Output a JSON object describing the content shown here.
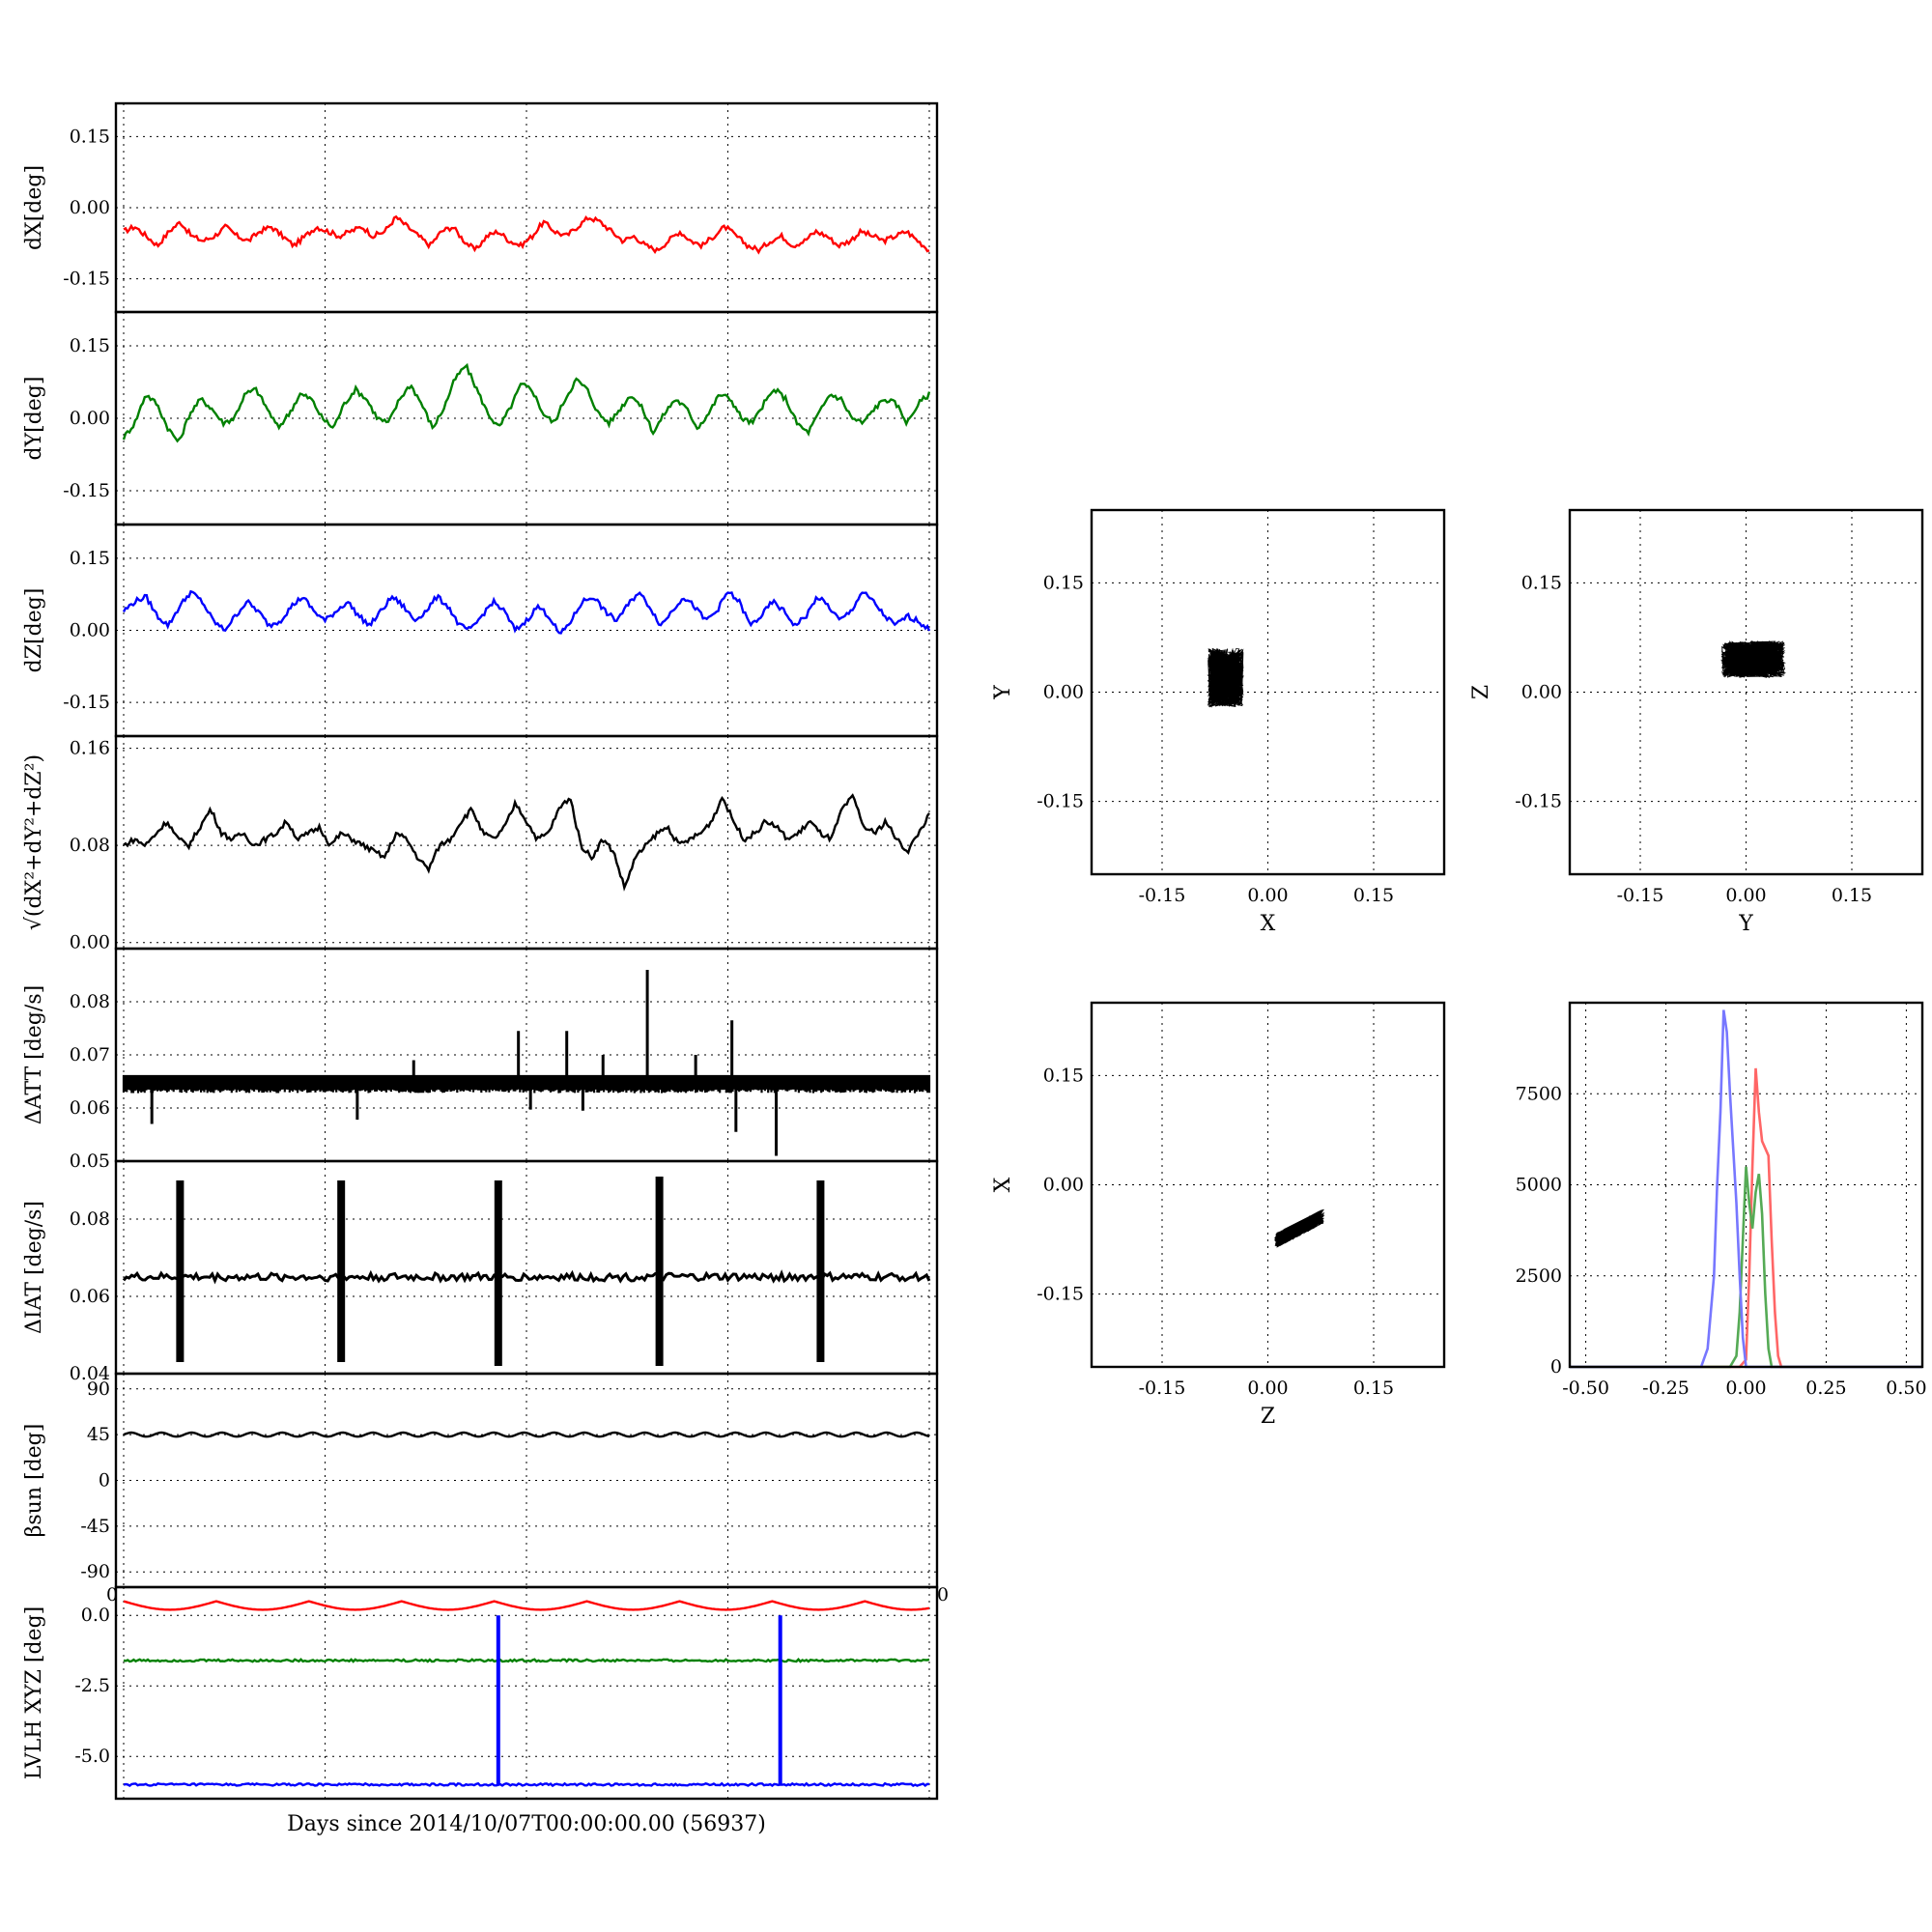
{
  "figure": {
    "xlabel": "Days since 2014/10/07T00:00:00.00 (56937)"
  },
  "chart_data": [
    {
      "type": "line",
      "ylabel": "dX[deg]",
      "ylim": [
        -0.22,
        0.22
      ],
      "yticks": [
        "0.15",
        "0.00",
        "-0.15"
      ],
      "ytick_values": [
        0.15,
        0.0,
        -0.15
      ],
      "xlim": [
        0,
        20
      ],
      "color": "#ff0000",
      "grid": true,
      "series": [
        {
          "values": [
            -0.05,
            -0.04,
            -0.06,
            -0.08,
            -0.05,
            -0.03,
            -0.06,
            -0.07,
            -0.06,
            -0.04,
            -0.06,
            -0.07,
            -0.05,
            -0.04,
            -0.06,
            -0.08,
            -0.06,
            -0.04,
            -0.05,
            -0.06,
            -0.05,
            -0.04,
            -0.06,
            -0.05,
            -0.02,
            -0.04,
            -0.06,
            -0.08,
            -0.05,
            -0.04,
            -0.07,
            -0.09,
            -0.06,
            -0.05,
            -0.07,
            -0.08,
            -0.06,
            -0.03,
            -0.05,
            -0.06,
            -0.04,
            -0.02,
            -0.03,
            -0.05,
            -0.07,
            -0.06,
            -0.08,
            -0.09,
            -0.07,
            -0.05,
            -0.07,
            -0.08,
            -0.06,
            -0.04,
            -0.06,
            -0.08,
            -0.09,
            -0.07,
            -0.06,
            -0.08,
            -0.07,
            -0.05,
            -0.06,
            -0.08,
            -0.07,
            -0.05,
            -0.06,
            -0.07,
            -0.06,
            -0.05,
            -0.07,
            -0.09
          ]
        }
      ]
    },
    {
      "type": "line",
      "ylabel": "dY[deg]",
      "ylim": [
        -0.22,
        0.22
      ],
      "yticks": [
        "0.15",
        "0.00",
        "-0.15"
      ],
      "ytick_values": [
        0.15,
        0.0,
        -0.15
      ],
      "xlim": [
        0,
        20
      ],
      "color": "#008000",
      "grid": true,
      "series": [
        {
          "values": [
            -0.04,
            -0.01,
            0.05,
            0.03,
            -0.02,
            -0.05,
            0.01,
            0.04,
            0.02,
            -0.01,
            0.0,
            0.05,
            0.06,
            0.02,
            -0.02,
            0.01,
            0.05,
            0.04,
            0.0,
            -0.02,
            0.03,
            0.06,
            0.04,
            0.0,
            -0.01,
            0.04,
            0.07,
            0.03,
            -0.02,
            0.02,
            0.08,
            0.11,
            0.06,
            0.01,
            -0.02,
            0.02,
            0.07,
            0.06,
            0.01,
            -0.01,
            0.04,
            0.08,
            0.06,
            0.01,
            -0.01,
            0.02,
            0.05,
            0.02,
            -0.03,
            0.01,
            0.04,
            0.02,
            -0.02,
            0.01,
            0.05,
            0.04,
            0.0,
            -0.01,
            0.03,
            0.06,
            0.04,
            -0.01,
            -0.03,
            0.01,
            0.05,
            0.04,
            0.0,
            -0.01,
            0.02,
            0.04,
            0.03,
            -0.01,
            0.03,
            0.05
          ]
        }
      ]
    },
    {
      "type": "line",
      "ylabel": "dZ[deg]",
      "ylim": [
        -0.22,
        0.22
      ],
      "yticks": [
        "0.15",
        "0.00",
        "-0.15"
      ],
      "ytick_values": [
        0.15,
        0.0,
        -0.15
      ],
      "xlim": [
        0,
        20
      ],
      "color": "#0000ff",
      "grid": true,
      "series": [
        {
          "values": [
            0.04,
            0.06,
            0.07,
            0.03,
            0.01,
            0.05,
            0.08,
            0.06,
            0.02,
            0.0,
            0.03,
            0.06,
            0.04,
            0.01,
            0.02,
            0.05,
            0.07,
            0.04,
            0.02,
            0.04,
            0.06,
            0.03,
            0.01,
            0.04,
            0.07,
            0.05,
            0.02,
            0.04,
            0.07,
            0.05,
            0.01,
            0.0,
            0.03,
            0.06,
            0.04,
            0.0,
            0.02,
            0.05,
            0.03,
            -0.01,
            0.02,
            0.06,
            0.07,
            0.04,
            0.02,
            0.05,
            0.08,
            0.05,
            0.01,
            0.04,
            0.07,
            0.05,
            0.02,
            0.04,
            0.08,
            0.06,
            0.01,
            0.03,
            0.06,
            0.04,
            0.01,
            0.03,
            0.07,
            0.05,
            0.02,
            0.04,
            0.08,
            0.06,
            0.03,
            0.01,
            0.03,
            0.02,
            0.0
          ]
        }
      ]
    },
    {
      "type": "line",
      "ylabel": "√(dX²+dY²+dZ²)",
      "ylim": [
        -0.005,
        0.17
      ],
      "yticks": [
        "0.16",
        "0.08",
        "0.00"
      ],
      "ytick_values": [
        0.16,
        0.08,
        0.0
      ],
      "xlim": [
        0,
        20
      ],
      "color": "#000000",
      "grid": true,
      "series": [
        {
          "values": [
            0.08,
            0.085,
            0.08,
            0.09,
            0.1,
            0.085,
            0.08,
            0.095,
            0.11,
            0.09,
            0.085,
            0.09,
            0.08,
            0.085,
            0.09,
            0.1,
            0.085,
            0.09,
            0.095,
            0.08,
            0.09,
            0.085,
            0.08,
            0.075,
            0.07,
            0.09,
            0.085,
            0.07,
            0.06,
            0.08,
            0.085,
            0.1,
            0.11,
            0.09,
            0.085,
            0.095,
            0.115,
            0.1,
            0.085,
            0.09,
            0.11,
            0.12,
            0.08,
            0.07,
            0.085,
            0.075,
            0.045,
            0.07,
            0.08,
            0.09,
            0.095,
            0.08,
            0.085,
            0.09,
            0.1,
            0.12,
            0.1,
            0.085,
            0.09,
            0.1,
            0.095,
            0.085,
            0.09,
            0.1,
            0.09,
            0.085,
            0.11,
            0.12,
            0.095,
            0.09,
            0.1,
            0.085,
            0.075,
            0.09,
            0.105
          ]
        }
      ]
    },
    {
      "type": "line",
      "ylabel": "ΔATT [deg/s]",
      "ylim": [
        0.05,
        0.09
      ],
      "yticks": [
        "0.08",
        "0.07",
        "0.06",
        "0.05"
      ],
      "ytick_values": [
        0.08,
        0.07,
        0.06,
        0.05
      ],
      "xlim": [
        0,
        20
      ],
      "color": "#000000",
      "grid": true,
      "baseline": 0.065,
      "spikes": [
        {
          "x": 0.7,
          "v": 0.057
        },
        {
          "x": 5.8,
          "v": 0.0578
        },
        {
          "x": 7.2,
          "v": 0.069
        },
        {
          "x": 9.8,
          "v": 0.0745
        },
        {
          "x": 10.1,
          "v": 0.0597
        },
        {
          "x": 11.0,
          "v": 0.0745
        },
        {
          "x": 11.4,
          "v": 0.0595
        },
        {
          "x": 11.9,
          "v": 0.07
        },
        {
          "x": 13.0,
          "v": 0.086
        },
        {
          "x": 14.2,
          "v": 0.07
        },
        {
          "x": 15.1,
          "v": 0.0765
        },
        {
          "x": 15.2,
          "v": 0.0555
        },
        {
          "x": 16.2,
          "v": 0.051
        }
      ]
    },
    {
      "type": "line",
      "ylabel": "ΔIAT [deg/s]",
      "ylim": [
        0.04,
        0.095
      ],
      "yticks": [
        "0.08",
        "0.06",
        "0.04"
      ],
      "ytick_values": [
        0.08,
        0.06,
        0.04
      ],
      "xlim": [
        0,
        20
      ],
      "color": "#000000",
      "grid": true,
      "baseline": 0.065,
      "bursts": [
        {
          "x": 1.4,
          "lo": 0.043,
          "hi": 0.09
        },
        {
          "x": 5.4,
          "lo": 0.043,
          "hi": 0.09
        },
        {
          "x": 9.3,
          "lo": 0.042,
          "hi": 0.09
        },
        {
          "x": 13.3,
          "lo": 0.042,
          "hi": 0.091
        },
        {
          "x": 17.3,
          "lo": 0.043,
          "hi": 0.09
        }
      ]
    },
    {
      "type": "line",
      "ylabel": "βsun [deg]",
      "ylim": [
        -105,
        105
      ],
      "yticks": [
        "90",
        "45",
        "0",
        "-45",
        "-90"
      ],
      "ytick_values": [
        90,
        45,
        0,
        -45,
        -90
      ],
      "xlim": [
        0,
        20
      ],
      "color": "#000000",
      "grid": true,
      "baseline": 45
    },
    {
      "type": "line",
      "ylabel": "LVLH XYZ [deg]",
      "ylim": [
        -6.5,
        1.0
      ],
      "yticks": [
        "0.0",
        "-2.5",
        "-5.0"
      ],
      "ytick_values": [
        0.0,
        -2.5,
        -5.0
      ],
      "xlim": [
        0,
        20
      ],
      "grid": true,
      "xtick_left": "0",
      "xtick_right": "0",
      "series": [
        {
          "color": "#ff0000",
          "baseline": 0.5
        },
        {
          "color": "#008000",
          "baseline": -1.6
        },
        {
          "color": "#0000ff",
          "baseline": -6.0,
          "spikes_at": [
            9.3,
            16.3
          ]
        }
      ]
    },
    {
      "type": "scatter",
      "xlabel": "X",
      "ylabel": "Y",
      "xlim": [
        -0.25,
        0.25
      ],
      "ylim": [
        -0.25,
        0.25
      ],
      "xticks": [
        "-0.15",
        "0.00",
        "0.15"
      ],
      "yticks": [
        "0.15",
        "0.00",
        "-0.15"
      ],
      "tick_values": [
        -0.15,
        0.0,
        0.15
      ],
      "cluster_center": [
        -0.06,
        0.02
      ],
      "cluster_spread": [
        0.025,
        0.04
      ],
      "color": "#000000",
      "grid": true
    },
    {
      "type": "scatter",
      "xlabel": "Y",
      "ylabel": "Z",
      "xlim": [
        -0.25,
        0.25
      ],
      "ylim": [
        -0.25,
        0.25
      ],
      "xticks": [
        "-0.15",
        "0.00",
        "0.15"
      ],
      "yticks": [
        "0.15",
        "0.00",
        "-0.15"
      ],
      "tick_values": [
        -0.15,
        0.0,
        0.15
      ],
      "cluster_center": [
        0.01,
        0.045
      ],
      "cluster_spread": [
        0.045,
        0.025
      ],
      "color": "#000000",
      "grid": true
    },
    {
      "type": "scatter",
      "xlabel": "Z",
      "ylabel": "X",
      "xlim": [
        -0.25,
        0.25
      ],
      "ylim": [
        -0.25,
        0.25
      ],
      "xticks": [
        "-0.15",
        "0.00",
        "0.15"
      ],
      "yticks": [
        "0.15",
        "0.00",
        "-0.15"
      ],
      "tick_values": [
        -0.15,
        0.0,
        0.15
      ],
      "cluster_center": [
        0.045,
        -0.06
      ],
      "cluster_spread": [
        0.035,
        0.02
      ],
      "color": "#000000",
      "grid": true
    },
    {
      "type": "histogram",
      "xlim": [
        -0.55,
        0.55
      ],
      "ylim": [
        0,
        10000
      ],
      "xticks": [
        "-0.50",
        "-0.25",
        "0.00",
        "0.25",
        "0.50"
      ],
      "xtick_values": [
        -0.5,
        -0.25,
        0.0,
        0.25,
        0.5
      ],
      "yticks": [
        "7500",
        "5000",
        "2500",
        "0"
      ],
      "ytick_values": [
        7500,
        5000,
        2500,
        0
      ],
      "grid": true,
      "series": [
        {
          "color": "#ff6666",
          "x": [
            -0.02,
            0.0,
            0.01,
            0.02,
            0.03,
            0.04,
            0.05,
            0.06,
            0.07,
            0.08,
            0.09,
            0.1,
            0.11
          ],
          "values": [
            0,
            200,
            2500,
            5500,
            8200,
            7000,
            6200,
            6000,
            5800,
            3500,
            1500,
            300,
            0
          ]
        },
        {
          "color": "#55aa55",
          "x": [
            -0.05,
            -0.03,
            -0.02,
            -0.01,
            0.0,
            0.01,
            0.02,
            0.03,
            0.04,
            0.05,
            0.06,
            0.07,
            0.08
          ],
          "values": [
            0,
            300,
            1500,
            3500,
            5500,
            4500,
            3800,
            4800,
            5300,
            4200,
            2000,
            500,
            0
          ]
        },
        {
          "color": "#7777ff",
          "x": [
            -0.14,
            -0.12,
            -0.1,
            -0.09,
            -0.08,
            -0.07,
            -0.06,
            -0.05,
            -0.04,
            -0.03,
            -0.02,
            -0.01,
            0.0
          ],
          "values": [
            0,
            500,
            2500,
            5000,
            7000,
            9800,
            9200,
            7500,
            6000,
            4500,
            2500,
            800,
            0
          ]
        }
      ]
    }
  ]
}
